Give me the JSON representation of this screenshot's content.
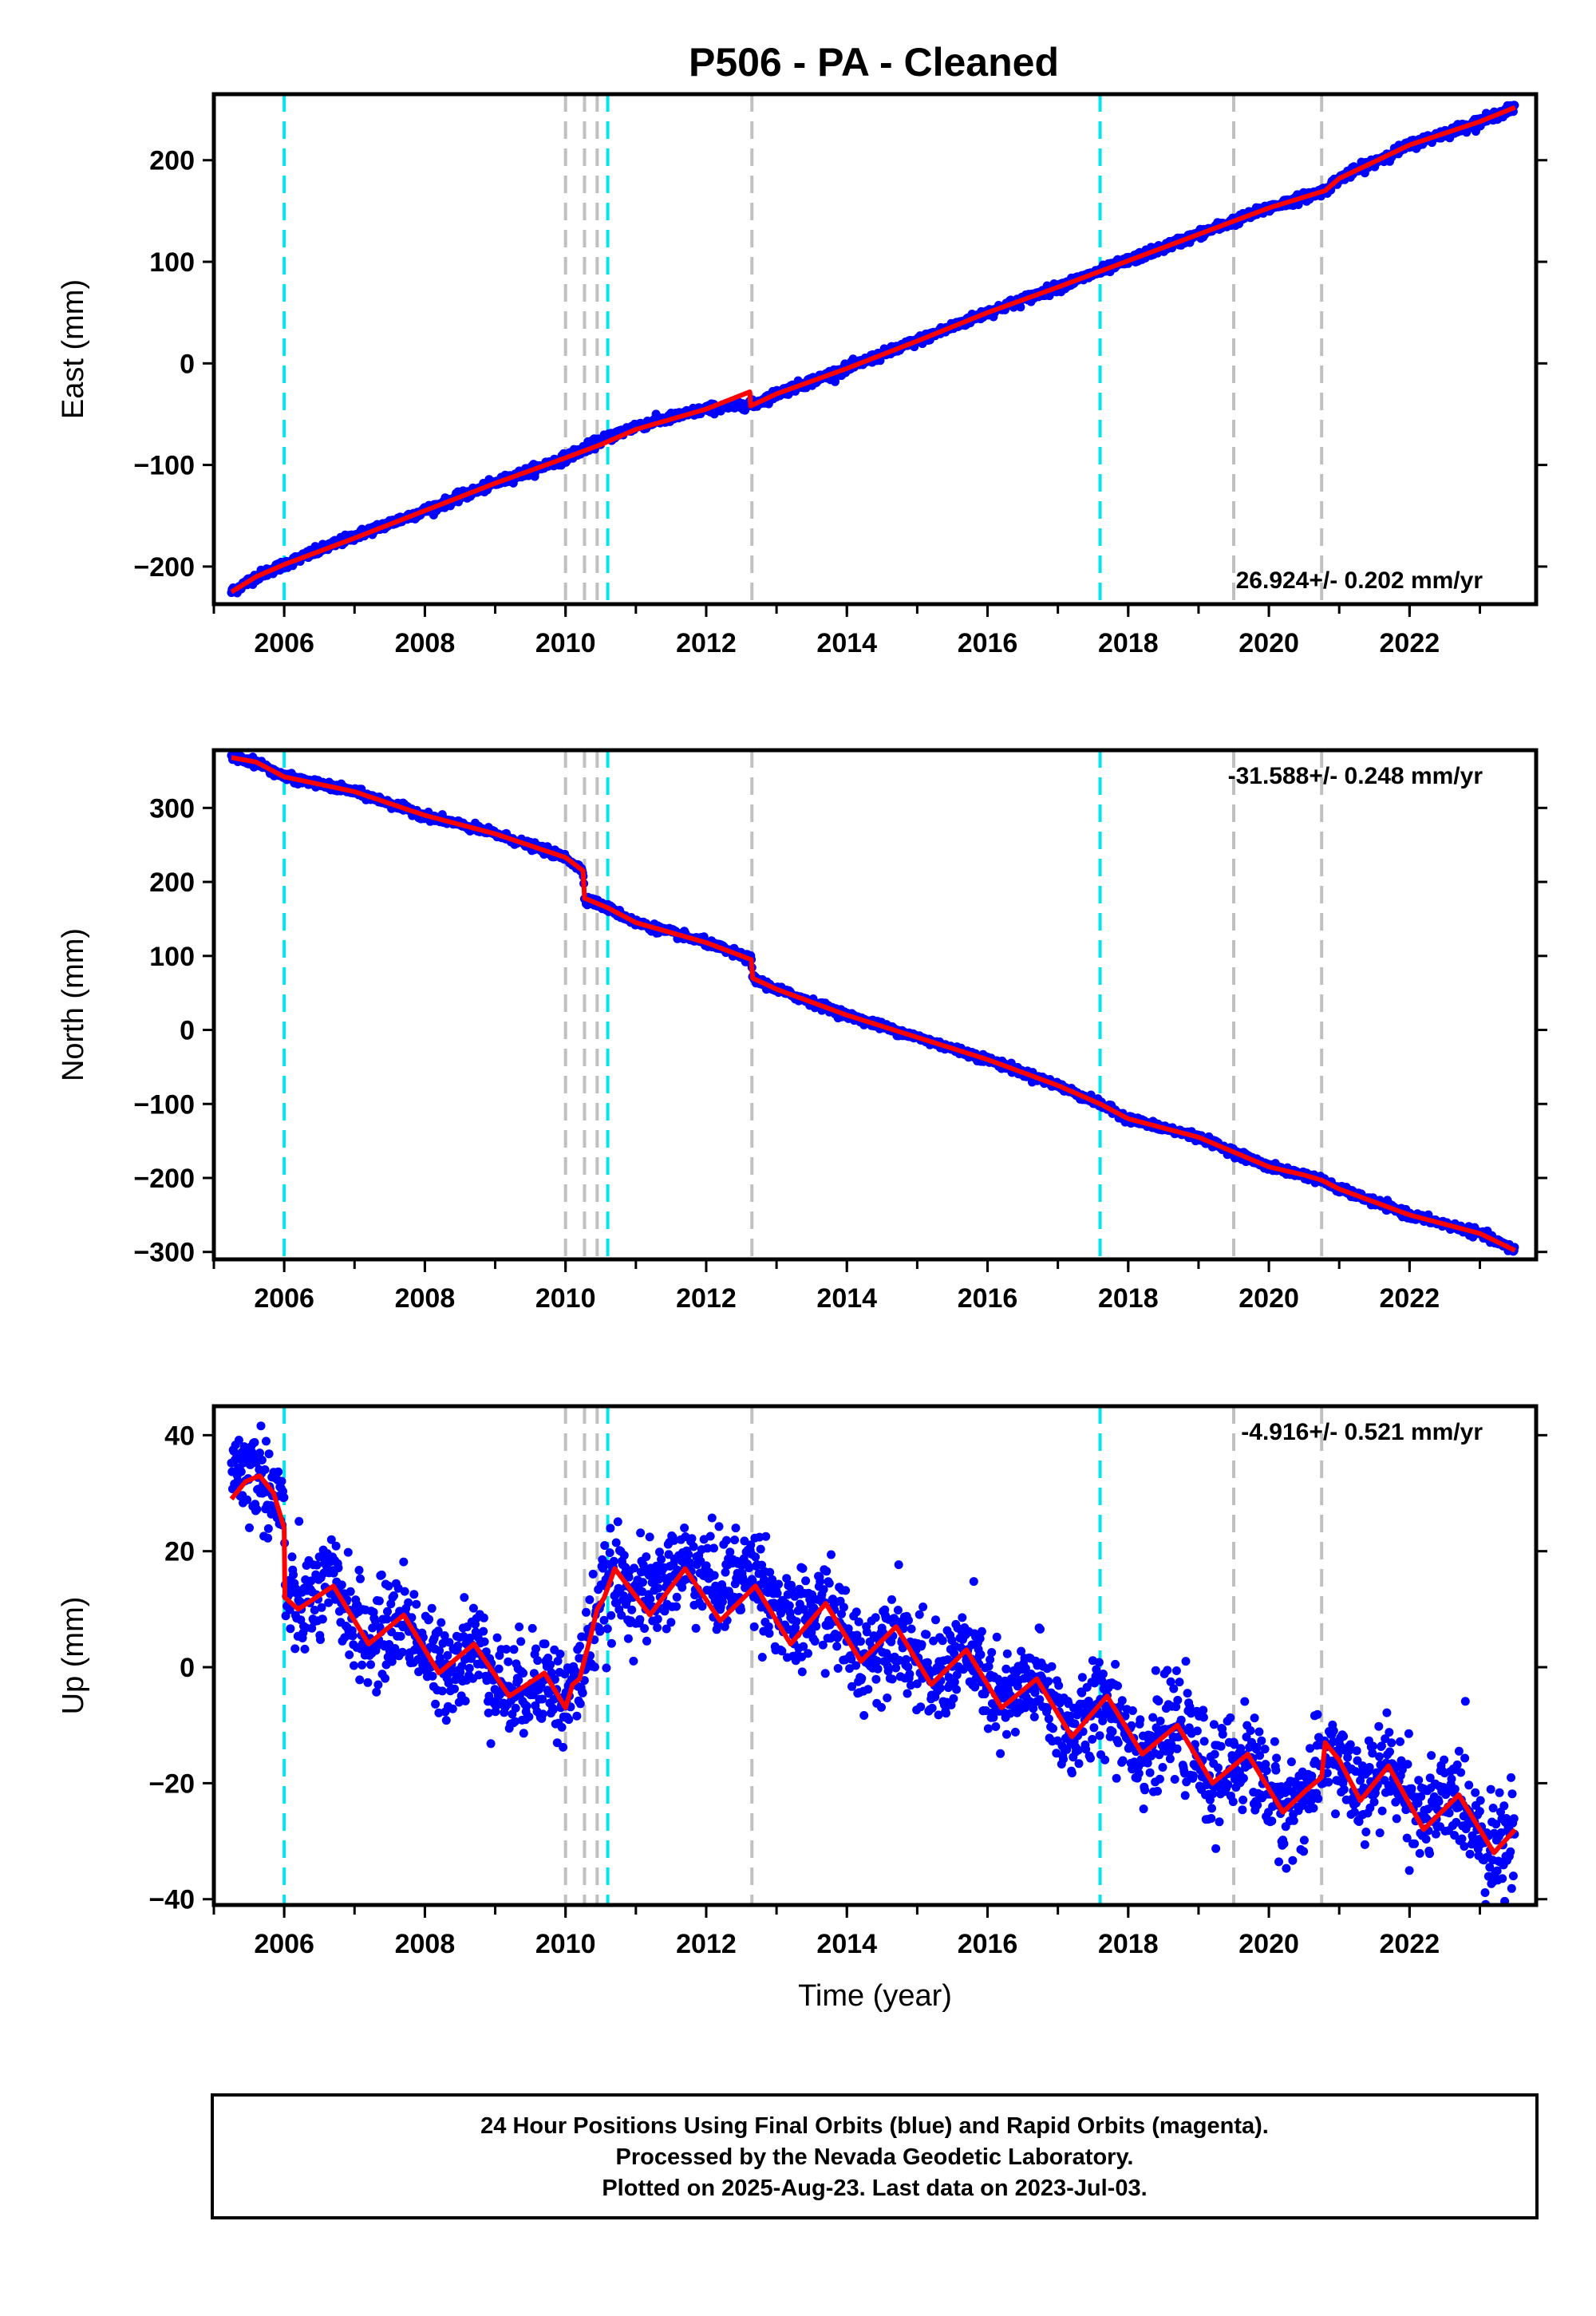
{
  "title": "P506  - PA - Cleaned",
  "colors": {
    "data": "#0000ff",
    "model": "#ff0000",
    "antenna_change": "#00e5ee",
    "earthquake": "#c0c0c0",
    "frame": "#000000"
  },
  "footer": {
    "line1": "24 Hour Positions Using Final Orbits (blue) and Rapid Orbits (magenta).",
    "line2": "Processed by the Nevada Geodetic Laboratory.",
    "line3": "Plotted on 2025-Aug-23. Last data on 2023-Jul-03."
  },
  "chart_data": [
    {
      "type": "scatter",
      "component": "east",
      "ylabel": "East (mm)",
      "xlabel": "",
      "rate_label": "26.924+/- 0.202 mm/yr",
      "rate_position": "bottom-right",
      "xlim": [
        2005.0,
        2023.8
      ],
      "ylim": [
        -237,
        265
      ],
      "yticks": [
        -200,
        -100,
        0,
        100,
        200
      ],
      "yticklabels": [
        "−200",
        "−100",
        "0",
        "100",
        "200"
      ],
      "xticks": [
        2006,
        2008,
        2010,
        2012,
        2014,
        2016,
        2018,
        2020,
        2022
      ],
      "xticklabels": [
        "2006",
        "2008",
        "2010",
        "2012",
        "2014",
        "2016",
        "2018",
        "2020",
        "2022"
      ],
      "grid": false,
      "start": 2005.25,
      "end": 2023.5,
      "noise_mm": 2.2,
      "model": {
        "name": "model",
        "x": [
          2005.25,
          2005.6,
          2006.0,
          2007.0,
          2008.0,
          2009.0,
          2010.0,
          2010.5,
          2011.0,
          2012.0,
          2012.62,
          2012.63,
          2013.0,
          2014.0,
          2015.0,
          2016.0,
          2017.0,
          2018.0,
          2019.0,
          2020.0,
          2020.8,
          2021.0,
          2022.0,
          2023.0,
          2023.5
        ],
        "y": [
          -225,
          -210,
          -198,
          -172,
          -145,
          -118,
          -93,
          -80,
          -65,
          -45,
          -28,
          -42,
          -30,
          -5,
          22,
          50,
          75,
          101,
          127,
          153,
          170,
          182,
          215,
          238,
          252
        ]
      },
      "data_series": {
        "name": "data",
        "x": [
          2005.25,
          2005.6,
          2006.0,
          2007.0,
          2008.0,
          2009.0,
          2010.0,
          2010.5,
          2011.0,
          2012.0,
          2012.62,
          2012.63,
          2013.0,
          2014.0,
          2015.0,
          2016.0,
          2017.0,
          2018.0,
          2019.0,
          2020.0,
          2020.8,
          2021.0,
          2022.0,
          2023.0,
          2023.5
        ],
        "y": [
          -225,
          -210,
          -198,
          -170,
          -145,
          -118,
          -93,
          -76,
          -62,
          -45,
          -40,
          -42,
          -30,
          -5,
          22,
          50,
          75,
          101,
          127,
          153,
          170,
          182,
          215,
          238,
          252
        ]
      },
      "antenna_changes": [
        2006.0,
        2010.6,
        2017.6
      ],
      "earthquakes": [
        2010.0,
        2010.27,
        2010.45,
        2012.65,
        2019.5,
        2020.75
      ]
    },
    {
      "type": "scatter",
      "component": "north",
      "ylabel": "North (mm)",
      "xlabel": "",
      "rate_label": "-31.588+/- 0.248 mm/yr",
      "rate_position": "top-right",
      "xlim": [
        2005.0,
        2023.8
      ],
      "ylim": [
        -310,
        378
      ],
      "yticks": [
        -300,
        -200,
        -100,
        0,
        100,
        200,
        300
      ],
      "yticklabels": [
        "−300",
        "−200",
        "−100",
        "0",
        "100",
        "200",
        "300"
      ],
      "xticks": [
        2006,
        2008,
        2010,
        2012,
        2014,
        2016,
        2018,
        2020,
        2022
      ],
      "xticklabels": [
        "2006",
        "2008",
        "2010",
        "2012",
        "2014",
        "2016",
        "2018",
        "2020",
        "2022"
      ],
      "grid": false,
      "start": 2005.25,
      "end": 2023.5,
      "noise_mm": 2.5,
      "model": {
        "name": "model",
        "x": [
          2005.25,
          2005.6,
          2006.0,
          2007.0,
          2008.0,
          2009.0,
          2010.0,
          2010.25,
          2010.27,
          2010.6,
          2011.0,
          2012.0,
          2012.64,
          2012.66,
          2013.0,
          2014.0,
          2015.0,
          2016.0,
          2017.0,
          2017.6,
          2018.0,
          2019.0,
          2019.5,
          2020.0,
          2020.5,
          2020.75,
          2021.0,
          2022.0,
          2023.0,
          2023.5
        ],
        "y": [
          368,
          362,
          342,
          322,
          290,
          265,
          233,
          215,
          178,
          165,
          145,
          118,
          95,
          70,
          55,
          20,
          -10,
          -40,
          -75,
          -100,
          -120,
          -145,
          -165,
          -185,
          -196,
          -203,
          -215,
          -250,
          -275,
          -298
        ]
      },
      "data_series": {
        "name": "data",
        "x": [
          2005.25,
          2005.6,
          2006.0,
          2007.0,
          2008.0,
          2009.0,
          2010.0,
          2010.25,
          2010.27,
          2010.6,
          2011.0,
          2012.0,
          2012.64,
          2012.66,
          2013.0,
          2014.0,
          2015.0,
          2016.0,
          2017.0,
          2017.6,
          2018.0,
          2019.0,
          2019.5,
          2020.0,
          2020.5,
          2020.75,
          2021.0,
          2022.0,
          2023.0,
          2023.5
        ],
        "y": [
          368,
          362,
          342,
          322,
          290,
          265,
          233,
          215,
          178,
          165,
          145,
          118,
          95,
          70,
          55,
          20,
          -10,
          -40,
          -75,
          -100,
          -120,
          -145,
          -165,
          -185,
          -196,
          -203,
          -215,
          -250,
          -275,
          -298
        ]
      },
      "antenna_changes": [
        2006.0,
        2010.6,
        2017.6
      ],
      "earthquakes": [
        2010.0,
        2010.27,
        2010.45,
        2012.65,
        2019.5,
        2020.75
      ]
    },
    {
      "type": "scatter",
      "component": "up",
      "ylabel": "Up (mm)",
      "xlabel": "Time (year)",
      "rate_label": "-4.916+/- 0.521 mm/yr",
      "rate_position": "top-right",
      "xlim": [
        2005.0,
        2023.8
      ],
      "ylim": [
        -41,
        45
      ],
      "yticks": [
        -40,
        -20,
        0,
        20,
        40
      ],
      "yticklabels": [
        "−40",
        "−20",
        "0",
        "20",
        "40"
      ],
      "xticks": [
        2006,
        2008,
        2010,
        2012,
        2014,
        2016,
        2018,
        2020,
        2022
      ],
      "xticklabels": [
        "2006",
        "2008",
        "2010",
        "2012",
        "2014",
        "2016",
        "2018",
        "2020",
        "2022"
      ],
      "grid": false,
      "start": 2005.25,
      "end": 2023.5,
      "noise_mm": 4.2,
      "model": {
        "name": "model",
        "x": [
          2005.25,
          2005.45,
          2005.65,
          2005.85,
          2006.0,
          2006.01,
          2006.2,
          2006.7,
          2007.2,
          2007.7,
          2008.2,
          2008.7,
          2009.2,
          2009.7,
          2010.0,
          2010.1,
          2010.2,
          2010.35,
          2010.45,
          2010.55,
          2010.7,
          2011.2,
          2011.7,
          2012.2,
          2012.7,
          2013.2,
          2013.7,
          2014.2,
          2014.7,
          2015.2,
          2015.7,
          2016.2,
          2016.7,
          2017.2,
          2017.7,
          2018.2,
          2018.7,
          2019.2,
          2019.7,
          2020.2,
          2020.55,
          2020.75,
          2020.8,
          2021.0,
          2021.3,
          2021.7,
          2022.2,
          2022.7,
          2023.2,
          2023.5
        ],
        "y": [
          29,
          32,
          33,
          30,
          24,
          12,
          10,
          14,
          4,
          9,
          -1,
          4,
          -5,
          -1,
          -7,
          -3,
          -2,
          5,
          10,
          12,
          17,
          9,
          17,
          8,
          14,
          4,
          11,
          1,
          7,
          -3,
          3,
          -7,
          -2,
          -12,
          -5,
          -15,
          -10,
          -20,
          -15,
          -25,
          -21,
          -19,
          -13,
          -16,
          -23,
          -17,
          -28,
          -22,
          -32,
          -28
        ]
      },
      "data_series": {
        "name": "data",
        "x": [
          2005.25,
          2005.45,
          2005.65,
          2005.85,
          2006.0,
          2006.01,
          2006.2,
          2006.7,
          2007.2,
          2007.7,
          2008.2,
          2008.7,
          2009.2,
          2009.7,
          2010.0,
          2010.1,
          2010.2,
          2010.35,
          2010.45,
          2010.55,
          2010.7,
          2011.2,
          2011.7,
          2012.2,
          2012.7,
          2013.2,
          2013.7,
          2014.2,
          2014.7,
          2015.2,
          2015.7,
          2016.2,
          2016.7,
          2017.2,
          2017.7,
          2018.2,
          2018.7,
          2019.2,
          2019.7,
          2020.2,
          2020.55,
          2020.75,
          2020.8,
          2021.0,
          2021.3,
          2021.7,
          2022.2,
          2022.7,
          2023.2,
          2023.5
        ],
        "y": [
          35,
          34,
          33,
          30,
          27,
          12,
          10,
          14,
          4,
          9,
          -1,
          4,
          -5,
          -1,
          -7,
          -3,
          -2,
          5,
          10,
          12,
          15,
          12,
          18,
          14,
          17,
          6,
          11,
          1,
          7,
          -3,
          3,
          -7,
          -2,
          -12,
          -5,
          -15,
          -10,
          -20,
          -15,
          -25,
          -21,
          -19,
          -13,
          -16,
          -23,
          -17,
          -26,
          -22,
          -32,
          -28
        ]
      },
      "antenna_changes": [
        2006.0,
        2010.6,
        2017.6
      ],
      "earthquakes": [
        2010.0,
        2010.27,
        2010.45,
        2012.65,
        2019.5,
        2020.75
      ]
    }
  ]
}
